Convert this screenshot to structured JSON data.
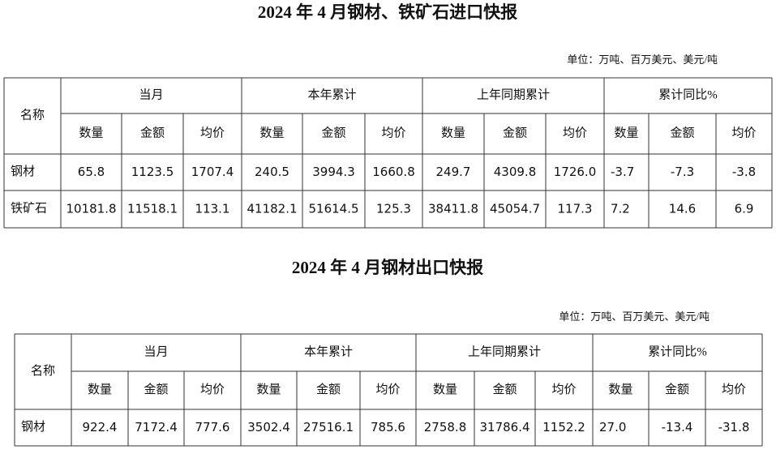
{
  "table1": {
    "title": "2024 年 4 月钢材、铁矿石进口快报",
    "unit": "单位：万吨、百万美元、美元/吨",
    "header": {
      "name": "名称",
      "groups": [
        "当月",
        "本年累计",
        "上年同期累计",
        "累计同比%"
      ],
      "columns": [
        "数量",
        "金额",
        "均价",
        "数量",
        "金额",
        "均价",
        "数量",
        "金额",
        "均价",
        "数量",
        "金额",
        "均价"
      ]
    },
    "rows": [
      [
        "钢材",
        "65.8",
        "1123.5",
        "1707.4",
        "240.5",
        "3994.3",
        "1660.8",
        "249.7",
        "4309.8",
        "1726.0",
        "-3.7",
        "-7.3",
        "-3.8"
      ],
      [
        "铁矿石",
        "10181.8",
        "11518.1",
        "113.1",
        "41182.1",
        "51614.5",
        "125.3",
        "38411.8",
        "45054.7",
        "117.3",
        "7.2",
        "14.6",
        "6.9"
      ]
    ]
  },
  "table2": {
    "title": "2024 年 4 月钢材出口快报",
    "unit": "单位：万吨、百万美元、美元/吨",
    "header": {
      "name": "名称",
      "groups": [
        "当月",
        "本年累计",
        "上年同期累计",
        "累计同比%"
      ],
      "columns": [
        "数量",
        "金额",
        "均价",
        "数量",
        "金额",
        "均价",
        "数量",
        "金额",
        "均价",
        "数量",
        "金额",
        "均价"
      ]
    },
    "rows": [
      [
        "钢材",
        "922.4",
        "7172.4",
        "777.6",
        "3502.4",
        "27516.1",
        "785.6",
        "2758.8",
        "31786.4",
        "1152.2",
        "27.0",
        "-13.4",
        "-31.8"
      ]
    ]
  }
}
